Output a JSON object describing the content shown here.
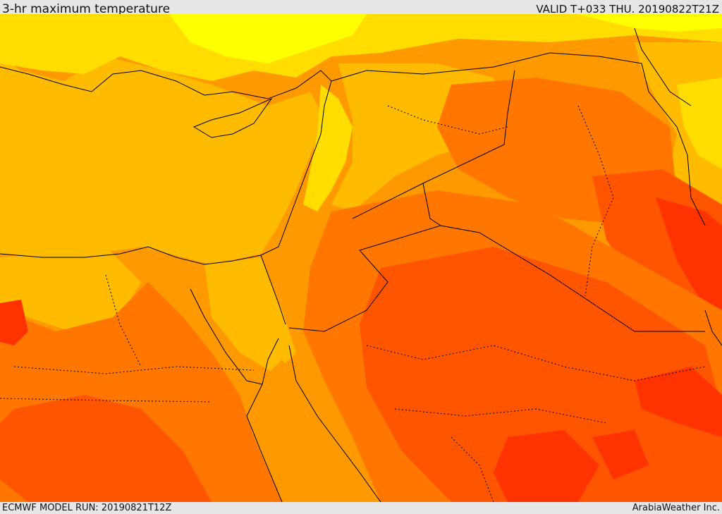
{
  "header": {
    "title": "3-hr maximum temperature",
    "valid": "VALID T+033 THU. 20190822T21Z"
  },
  "footer": {
    "model_run": "ECMWF MODEL RUN: 20190821T12Z",
    "credit": "ArabiaWeather Inc."
  },
  "palette": {
    "coolest": "#ffff00",
    "cool": "#ffdd00",
    "mild": "#ffbb00",
    "warm": "#ff9900",
    "hot": "#ff7700",
    "hotter": "#ff5500",
    "hottest": "#ff3300",
    "border": "#000000"
  }
}
